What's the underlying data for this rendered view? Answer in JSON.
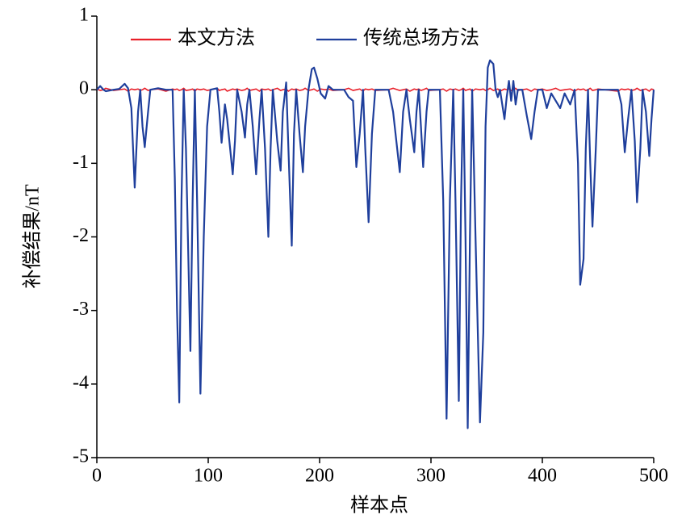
{
  "chart_data": {
    "type": "line",
    "xlabel": "样本点",
    "ylabel": "补偿结果/nT",
    "x": [
      0,
      3,
      6,
      8,
      15,
      20,
      25,
      28,
      31,
      34,
      37,
      39,
      41,
      43,
      46,
      48,
      55,
      62,
      68,
      70,
      72,
      74,
      76,
      78,
      80,
      84,
      86,
      88,
      90,
      93,
      96,
      99,
      102,
      108,
      110,
      112,
      115,
      117,
      122,
      124,
      126,
      130,
      133,
      135,
      137,
      140,
      143,
      146,
      148,
      151,
      154,
      156,
      158,
      162,
      165,
      167,
      170,
      172,
      175,
      177,
      179,
      182,
      185,
      187,
      190,
      193,
      195,
      198,
      201,
      205,
      208,
      212,
      222,
      226,
      230,
      233,
      236,
      239,
      241,
      244,
      247,
      250,
      262,
      266,
      272,
      275,
      278,
      281,
      285,
      287,
      289,
      291,
      293,
      296,
      298,
      308,
      311,
      314,
      317,
      320,
      322,
      325,
      327,
      329,
      331,
      333,
      335,
      337,
      340,
      344,
      347,
      349,
      351,
      353,
      356,
      358,
      360,
      362,
      366,
      368,
      370,
      372,
      374,
      376,
      378,
      382,
      386,
      390,
      393,
      396,
      400,
      404,
      408,
      412,
      416,
      420,
      425,
      429,
      432,
      434,
      437,
      439,
      441,
      443,
      445,
      448,
      450,
      468,
      471,
      474,
      477,
      480,
      483,
      485,
      488,
      490,
      493,
      496,
      498,
      500
    ],
    "series": [
      {
        "name": "本文方法",
        "color": "#e8202a",
        "values": [
          0.01,
          -0.01,
          0,
          0.02,
          -0.01,
          0,
          0.01,
          -0.02,
          0.01,
          0,
          0.01,
          -0.01,
          0,
          0.02,
          -0.01,
          0,
          0.01,
          -0.02,
          0.01,
          0,
          0.01,
          -0.01,
          0,
          0.02,
          -0.01,
          0,
          0.01,
          -0.02,
          0.01,
          0,
          0.01,
          -0.01,
          0,
          0.02,
          -0.01,
          0,
          0.01,
          -0.02,
          0.01,
          0,
          0.01,
          -0.01,
          0,
          0.02,
          -0.01,
          0,
          0.01,
          -0.02,
          0.01,
          0,
          0.01,
          -0.01,
          0,
          0.02,
          -0.01,
          0,
          0.01,
          -0.02,
          0.01,
          0,
          0.01,
          -0.01,
          0,
          0.02,
          -0.01,
          0,
          0.01,
          -0.02,
          0.01,
          0,
          0.01,
          -0.01,
          0,
          0.02,
          -0.01,
          0,
          0.01,
          -0.02,
          0.01,
          0,
          0.01,
          -0.01,
          0,
          0.02,
          -0.01,
          0,
          0.01,
          -0.02,
          0.01,
          0,
          0.01,
          -0.01,
          0,
          0.02,
          -0.01,
          0,
          0.01,
          -0.02,
          0.01,
          0,
          0.01,
          -0.01,
          0,
          0.02,
          -0.01,
          0,
          0.01,
          -0.02,
          0.01,
          0,
          0.01,
          -0.01,
          0,
          0.02,
          -0.01,
          0,
          0.01,
          -0.02,
          0.01,
          0,
          0.01,
          -0.01,
          0,
          0.02,
          -0.01,
          0,
          0.01,
          -0.02,
          0.01,
          0,
          0.01,
          -0.01,
          0,
          0.02,
          -0.01,
          0,
          0.01,
          -0.02,
          0.01,
          0,
          0.01,
          -0.01,
          0,
          0.02,
          -0.01,
          0,
          0.01,
          -0.02,
          0.01,
          0,
          0.01,
          -0.01,
          0,
          0.02,
          -0.01,
          0,
          0.01,
          -0.02,
          0.01,
          0
        ]
      },
      {
        "name": "传统总场方法",
        "color": "#1f3f9c",
        "values": [
          0,
          0.05,
          0,
          -0.02,
          0,
          0.01,
          0.08,
          0.02,
          -0.25,
          -1.33,
          -0.3,
          0,
          -0.5,
          -0.78,
          -0.3,
          0,
          0.02,
          0,
          0,
          -1.2,
          -3,
          -4.25,
          -1.5,
          0,
          -0.8,
          -3.55,
          -1.5,
          0,
          -1.5,
          -4.13,
          -2,
          -0.5,
          0,
          0.02,
          -0.3,
          -0.72,
          -0.2,
          -0.4,
          -1.15,
          -0.7,
          0,
          -0.3,
          -0.65,
          -0.2,
          0,
          -0.5,
          -1.15,
          -0.4,
          0,
          -0.8,
          -2,
          -0.8,
          0,
          -0.7,
          -1.1,
          -0.3,
          0.1,
          -0.8,
          -2.12,
          -0.6,
          0,
          -0.6,
          -1.12,
          -0.5,
          0,
          0.28,
          0.3,
          0.15,
          -0.05,
          -0.12,
          0.05,
          0,
          0,
          -0.1,
          -0.15,
          -1.05,
          -0.6,
          0,
          -0.8,
          -1.8,
          -0.6,
          0,
          0,
          -0.3,
          -1.12,
          -0.3,
          0,
          -0.4,
          -0.85,
          -0.3,
          0,
          -0.5,
          -1.05,
          -0.3,
          0,
          0,
          -1.5,
          -4.47,
          -1.5,
          0,
          -1.5,
          -4.23,
          -1.5,
          0,
          -2,
          -4.6,
          -2,
          0,
          -2,
          -4.52,
          -3.3,
          -0.5,
          0.3,
          0.4,
          0.35,
          0,
          -0.1,
          0,
          -0.4,
          -0.1,
          0.12,
          -0.15,
          0.12,
          -0.2,
          0,
          0,
          -0.35,
          -0.67,
          -0.3,
          0,
          0,
          -0.25,
          -0.05,
          -0.15,
          -0.25,
          -0.05,
          -0.2,
          0,
          -1,
          -2.65,
          -2.3,
          -0.8,
          0,
          -1,
          -1.86,
          -0.8,
          0,
          0,
          -0.2,
          -0.85,
          -0.4,
          0,
          -0.7,
          -1.53,
          -0.8,
          0,
          -0.3,
          -0.9,
          -0.4,
          0
        ]
      }
    ],
    "xlim": [
      0,
      500
    ],
    "xticks": [
      0,
      100,
      200,
      300,
      400,
      500
    ],
    "ylim": [
      -5,
      1
    ],
    "yticks": [
      -5,
      -4,
      -3,
      -2,
      -1,
      0,
      1
    ],
    "grid": false,
    "legend": "upper left"
  }
}
